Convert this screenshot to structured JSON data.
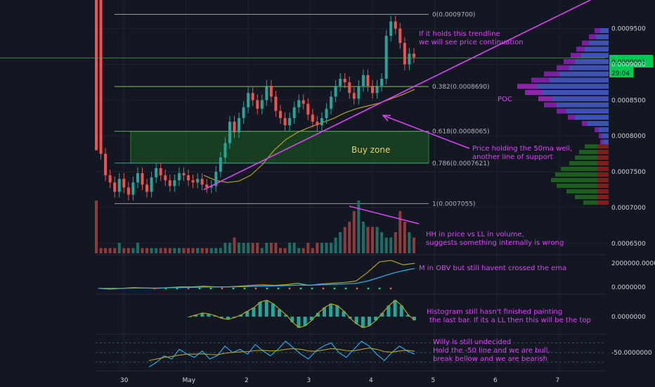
{
  "colors": {
    "background": "#131722",
    "grid": "#1e222d",
    "up": "#26a69a",
    "down": "#ef5350",
    "annotation": "#e040fb",
    "fib": "#9e9e9e",
    "buy_zone": "#1b5e20",
    "ema": "#b8a21a",
    "price_line": "#4caf50",
    "obv": "#b8a21a",
    "obv_ema": "#29b6f6",
    "willy": "#29b6f6",
    "willy_avg": "#b8a21a",
    "poc": "#7b1fa2",
    "vp_up": "#3f51b5",
    "vp_down": "#c62828"
  },
  "chart_data": [
    {
      "type": "candlestick",
      "x_axis": {
        "ticks": [
          "30",
          "May",
          "2",
          "3",
          "4",
          "5",
          "6",
          "7"
        ]
      },
      "y_axis": {
        "ticks": [
          "0.0009500",
          "0.0009000",
          "0.0008500",
          "0.0008000",
          "0.0007500",
          "0.0007000",
          "0.0006500"
        ],
        "ylim": [
          0.000636,
          0.00099
        ]
      },
      "current_price": {
        "label": "0.0009091",
        "countdown": "29:04",
        "value": 0.0009091
      },
      "fib_levels": [
        {
          "label": "0(0.0009700)",
          "value": 0.00097
        },
        {
          "label": "0.382(0.0008690)",
          "value": 0.000869
        },
        {
          "label": "0.618(0.0008065)",
          "value": 0.0008065
        },
        {
          "label": "0.786(0.0007621)",
          "value": 0.0007621
        },
        {
          "label": "1(0.0007055)",
          "value": 0.0007055
        }
      ],
      "buy_zone": {
        "label": "Buy zone",
        "from": 0.0007621,
        "to": 0.0008065
      },
      "trendline": {
        "from": 0.000725,
        "to": 0.00099
      },
      "volume_profile": {
        "poc_label": "POC"
      },
      "close_series": [
        0.00099,
        0.000775,
        0.000745,
        0.000735,
        0.000722,
        0.00074,
        0.000728,
        0.000718,
        0.000735,
        0.000748,
        0.000732,
        0.000722,
        0.000742,
        0.000755,
        0.000745,
        0.000738,
        0.00073,
        0.000738,
        0.000748,
        0.000745,
        0.000738,
        0.000735,
        0.00074,
        0.000732,
        0.000728,
        0.00073,
        0.00075,
        0.00077,
        0.00079,
        0.00082,
        0.000805,
        0.000825,
        0.00084,
        0.00086,
        0.00085,
        0.000838,
        0.00085,
        0.00087,
        0.000855,
        0.000835,
        0.000825,
        0.000815,
        0.000825,
        0.00084,
        0.00085,
        0.000845,
        0.00083,
        0.00082,
        0.000815,
        0.000825,
        0.000838,
        0.000855,
        0.00087,
        0.00088,
        0.000875,
        0.00086,
        0.000852,
        0.00087,
        0.000885,
        0.00087,
        0.00086,
        0.00087,
        0.00088,
        0.00094,
        0.00096,
        0.00095,
        0.00093,
        0.0009,
        0.000915,
        0.00091
      ],
      "ema_series": [
        0.000745,
        0.000738,
        0.000735,
        0.000737,
        0.000745,
        0.00076,
        0.00078,
        0.000795,
        0.000805,
        0.000812,
        0.000818,
        0.000824,
        0.000832,
        0.000838,
        0.000842,
        0.000846,
        0.000852,
        0.000858,
        0.000865
      ],
      "volume": [
        10,
        1,
        1,
        1,
        1,
        2,
        1,
        1,
        1,
        2,
        1,
        1,
        1,
        1,
        1,
        1,
        1,
        1,
        1,
        1,
        1,
        1,
        1,
        1,
        1,
        1,
        1,
        1,
        2,
        2,
        3,
        2,
        2,
        2,
        2,
        2,
        1,
        2,
        2,
        2,
        1,
        1,
        2,
        2,
        1,
        1,
        2,
        1,
        2,
        2,
        2,
        2,
        3,
        4,
        5,
        6,
        8,
        10,
        6,
        5,
        5,
        5,
        4,
        3,
        3,
        4,
        8,
        6,
        4,
        3
      ]
    },
    {
      "type": "line",
      "name": "OBV",
      "y_axis": {
        "ticks": [
          "2000000.0000000",
          "0.0000000"
        ]
      },
      "series": [
        {
          "values": [
            0.1,
            0.05,
            0.1,
            0.15,
            0.12,
            0.1,
            0.15,
            0.2,
            0.2,
            0.25,
            0.2,
            0.2,
            0.25,
            0.3,
            0.35,
            0.3,
            0.35,
            0.45,
            0.3,
            0.4,
            0.45,
            0.5,
            0.6,
            1.2,
            1.9,
            2.0,
            1.7,
            1.8
          ]
        },
        {
          "values": [
            0.1,
            0.1,
            0.1,
            0.12,
            0.12,
            0.12,
            0.14,
            0.16,
            0.17,
            0.19,
            0.2,
            0.2,
            0.21,
            0.23,
            0.26,
            0.27,
            0.29,
            0.32,
            0.32,
            0.34,
            0.37,
            0.4,
            0.44,
            0.6,
            0.85,
            1.1,
            1.3,
            1.45
          ]
        }
      ]
    },
    {
      "type": "bar",
      "name": "Histogram",
      "y_axis": {
        "ticks": [
          "0.0000000"
        ]
      },
      "values": [
        0.0,
        0.1,
        0.2,
        0.15,
        0.05,
        -0.1,
        -0.15,
        -0.05,
        0.1,
        0.3,
        0.5,
        0.8,
        0.9,
        0.7,
        0.4,
        0.1,
        -0.3,
        -0.6,
        -0.5,
        -0.2,
        0.2,
        0.5,
        0.7,
        0.6,
        0.3,
        -0.1,
        -0.4,
        -0.6,
        -0.5,
        -0.2,
        0.2,
        0.6,
        0.9,
        0.6,
        0.1,
        -0.2
      ]
    },
    {
      "type": "line",
      "name": "Willy",
      "y_axis": {
        "ticks": [
          "-50.0000000"
        ]
      },
      "series": [
        {
          "values": [
            -95,
            -80,
            -60,
            -70,
            -40,
            -55,
            -65,
            -45,
            -70,
            -60,
            -30,
            -50,
            -40,
            -55,
            -25,
            -45,
            -60,
            -40,
            -15,
            -35,
            -55,
            -70,
            -45,
            -30,
            -20,
            -50,
            -65,
            -40,
            -15,
            -30,
            -55,
            -75,
            -50,
            -30,
            -45,
            -55
          ]
        },
        {
          "values": [
            -75,
            -70,
            -65,
            -62,
            -58,
            -55,
            -55,
            -54,
            -56,
            -57,
            -52,
            -50,
            -48,
            -47,
            -44,
            -43,
            -45,
            -44,
            -40,
            -38,
            -40,
            -45,
            -46,
            -42,
            -38,
            -40,
            -44,
            -45,
            -40,
            -36,
            -40,
            -47,
            -49,
            -45,
            -43,
            -46
          ]
        }
      ]
    }
  ],
  "annotations": {
    "trendline_note": [
      "If it holds this trendline",
      "we will see price continuation"
    ],
    "ma_note": [
      "Price holding the 50ma well,",
      "another line of support"
    ],
    "volume_note": [
      "HH in price vs LL in volume,",
      "suggests something internally is wrong"
    ],
    "obv_note": "M in OBV but still havent crossed the ema",
    "hist_note": [
      "Histogram still hasn't finished painting",
      "the last bar. If its a LL then this will be the top"
    ],
    "willy_note": [
      "Willy is still undecided",
      "Hold the -50 line and we are bull,",
      "break bellow and we are bearish"
    ]
  }
}
